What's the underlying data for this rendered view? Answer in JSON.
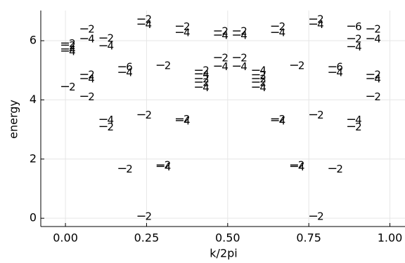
{
  "chart_data": {
    "type": "scatter",
    "x_label": "k/2pi",
    "y_label": "energy",
    "x": [
      0,
      0,
      0,
      0,
      0,
      0.059,
      0.059,
      0.059,
      0.059,
      0.059,
      0.059,
      0.118,
      0.118,
      0.118,
      0.118,
      0.176,
      0.176,
      0.176,
      0.235,
      0.235,
      0.235,
      0.235,
      0.294,
      0.294,
      0.294,
      0.353,
      0.353,
      0.353,
      0.353,
      0.412,
      0.412,
      0.412,
      0.412,
      0.412,
      0.471,
      0.471,
      0.471,
      0.471,
      0.529,
      0.529,
      0.529,
      0.529,
      0.588,
      0.588,
      0.588,
      0.588,
      0.588,
      0.647,
      0.647,
      0.647,
      0.647,
      0.706,
      0.706,
      0.706,
      0.765,
      0.765,
      0.765,
      0.765,
      0.824,
      0.824,
      0.824,
      0.882,
      0.882,
      0.882,
      0.882,
      0.882,
      0.941,
      0.941,
      0.941,
      0.941,
      0.941,
      0.941
    ],
    "values": [
      5.92,
      5.85,
      5.72,
      5.65,
      4.45,
      7.2,
      6.4,
      6.07,
      4.86,
      4.72,
      4.12,
      6.09,
      5.83,
      3.34,
      3.1,
      5.12,
      4.93,
      1.68,
      6.73,
      6.56,
      3.5,
      0.07,
      5.17,
      1.8,
      1.75,
      6.49,
      6.28,
      3.36,
      3.3,
      5.0,
      4.88,
      4.72,
      4.6,
      4.43,
      6.33,
      6.19,
      5.43,
      5.14,
      6.33,
      6.19,
      5.43,
      5.14,
      5.0,
      4.85,
      4.72,
      4.6,
      4.43,
      6.49,
      6.28,
      3.36,
      3.3,
      5.17,
      1.8,
      1.75,
      6.73,
      6.56,
      3.5,
      0.07,
      5.12,
      4.93,
      1.68,
      6.49,
      6.07,
      5.8,
      3.34,
      3.1,
      7.2,
      6.4,
      6.07,
      4.86,
      4.72,
      4.12
    ],
    "labels": [
      "2",
      "2",
      "4",
      "4",
      "2",
      "4",
      "2",
      "4",
      "2",
      "4",
      "2",
      "2",
      "4",
      "4",
      "2",
      "6",
      "4",
      "2",
      "2",
      "4",
      "2",
      "2",
      "2",
      "2",
      "4",
      "2",
      "4",
      "2",
      "4",
      "2",
      "4",
      "2",
      "2",
      "4",
      "2",
      "4",
      "2",
      "4",
      "2",
      "4",
      "2",
      "4",
      "4",
      "2",
      "2",
      "2",
      "4",
      "2",
      "4",
      "2",
      "4",
      "2",
      "2",
      "4",
      "2",
      "4",
      "2",
      "2",
      "6",
      "4",
      "2",
      "6",
      "2",
      "4",
      "4",
      "2",
      "4",
      "2",
      "4",
      "2",
      "4",
      "2"
    ],
    "color": "#000000",
    "xlim": [
      -0.076,
      1.04
    ],
    "ylim": [
      -0.28,
      7.02
    ],
    "xticks": [
      {
        "value": 0,
        "label": "0.00"
      },
      {
        "value": 0.25,
        "label": "0.25"
      },
      {
        "value": 0.5,
        "label": "0.50"
      },
      {
        "value": 0.75,
        "label": "0.75"
      },
      {
        "value": 1,
        "label": "1.00"
      }
    ],
    "yticks": [
      0,
      2,
      4,
      6
    ],
    "grid": true
  }
}
